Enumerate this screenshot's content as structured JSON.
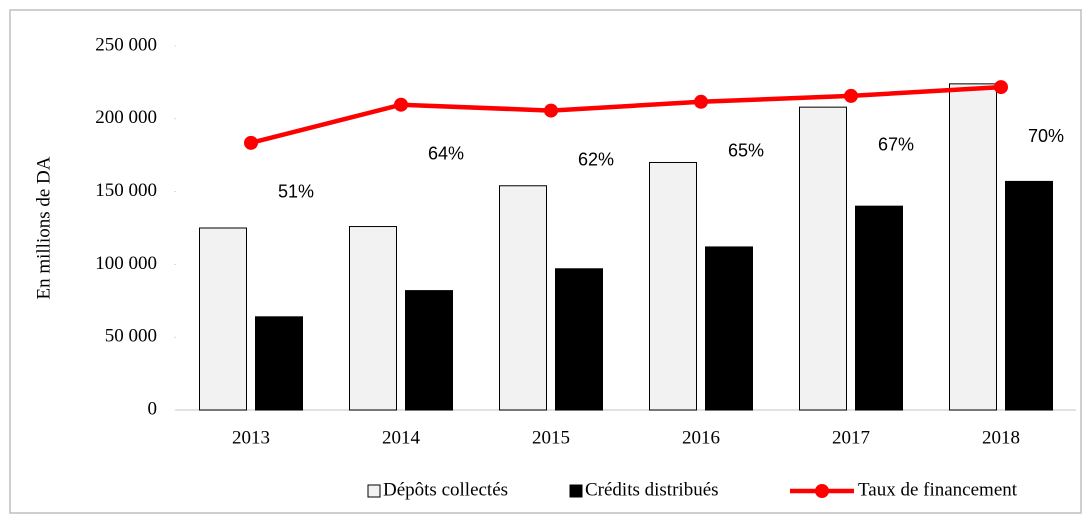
{
  "chart_data": {
    "type": "bar_line",
    "y_label": "En millions de DA",
    "categories": [
      "2013",
      "2014",
      "2015",
      "2016",
      "2017",
      "2018"
    ],
    "series": [
      {
        "name": "Dépôts collectés",
        "color": "#f2f2f2",
        "values": [
          125000,
          126000,
          154000,
          170000,
          208000,
          224000
        ]
      },
      {
        "name": "Crédits distribués",
        "color": "#000000",
        "values": [
          64000,
          82000,
          97000,
          112000,
          140000,
          157000
        ]
      },
      {
        "name": "Taux de financement",
        "color": "#ff0000",
        "axis": "y2",
        "values": [
          51,
          64,
          62,
          65,
          67,
          70
        ],
        "value_labels": [
          "51%",
          "64%",
          "62%",
          "65%",
          "67%",
          "70%"
        ]
      }
    ],
    "ylim": [
      0,
      250000
    ],
    "yticks": [
      0,
      {
        "value": 50000,
        "label": "50 000"
      },
      {
        "value": 100000,
        "label": "100 000"
      },
      {
        "value": 150000,
        "label": "150 000"
      },
      {
        "value": 200000,
        "label": "200 000"
      },
      {
        "value": 250000,
        "label": "250 000"
      }
    ],
    "y2lim": [
      -40,
      84
    ],
    "legend": "bottom"
  }
}
